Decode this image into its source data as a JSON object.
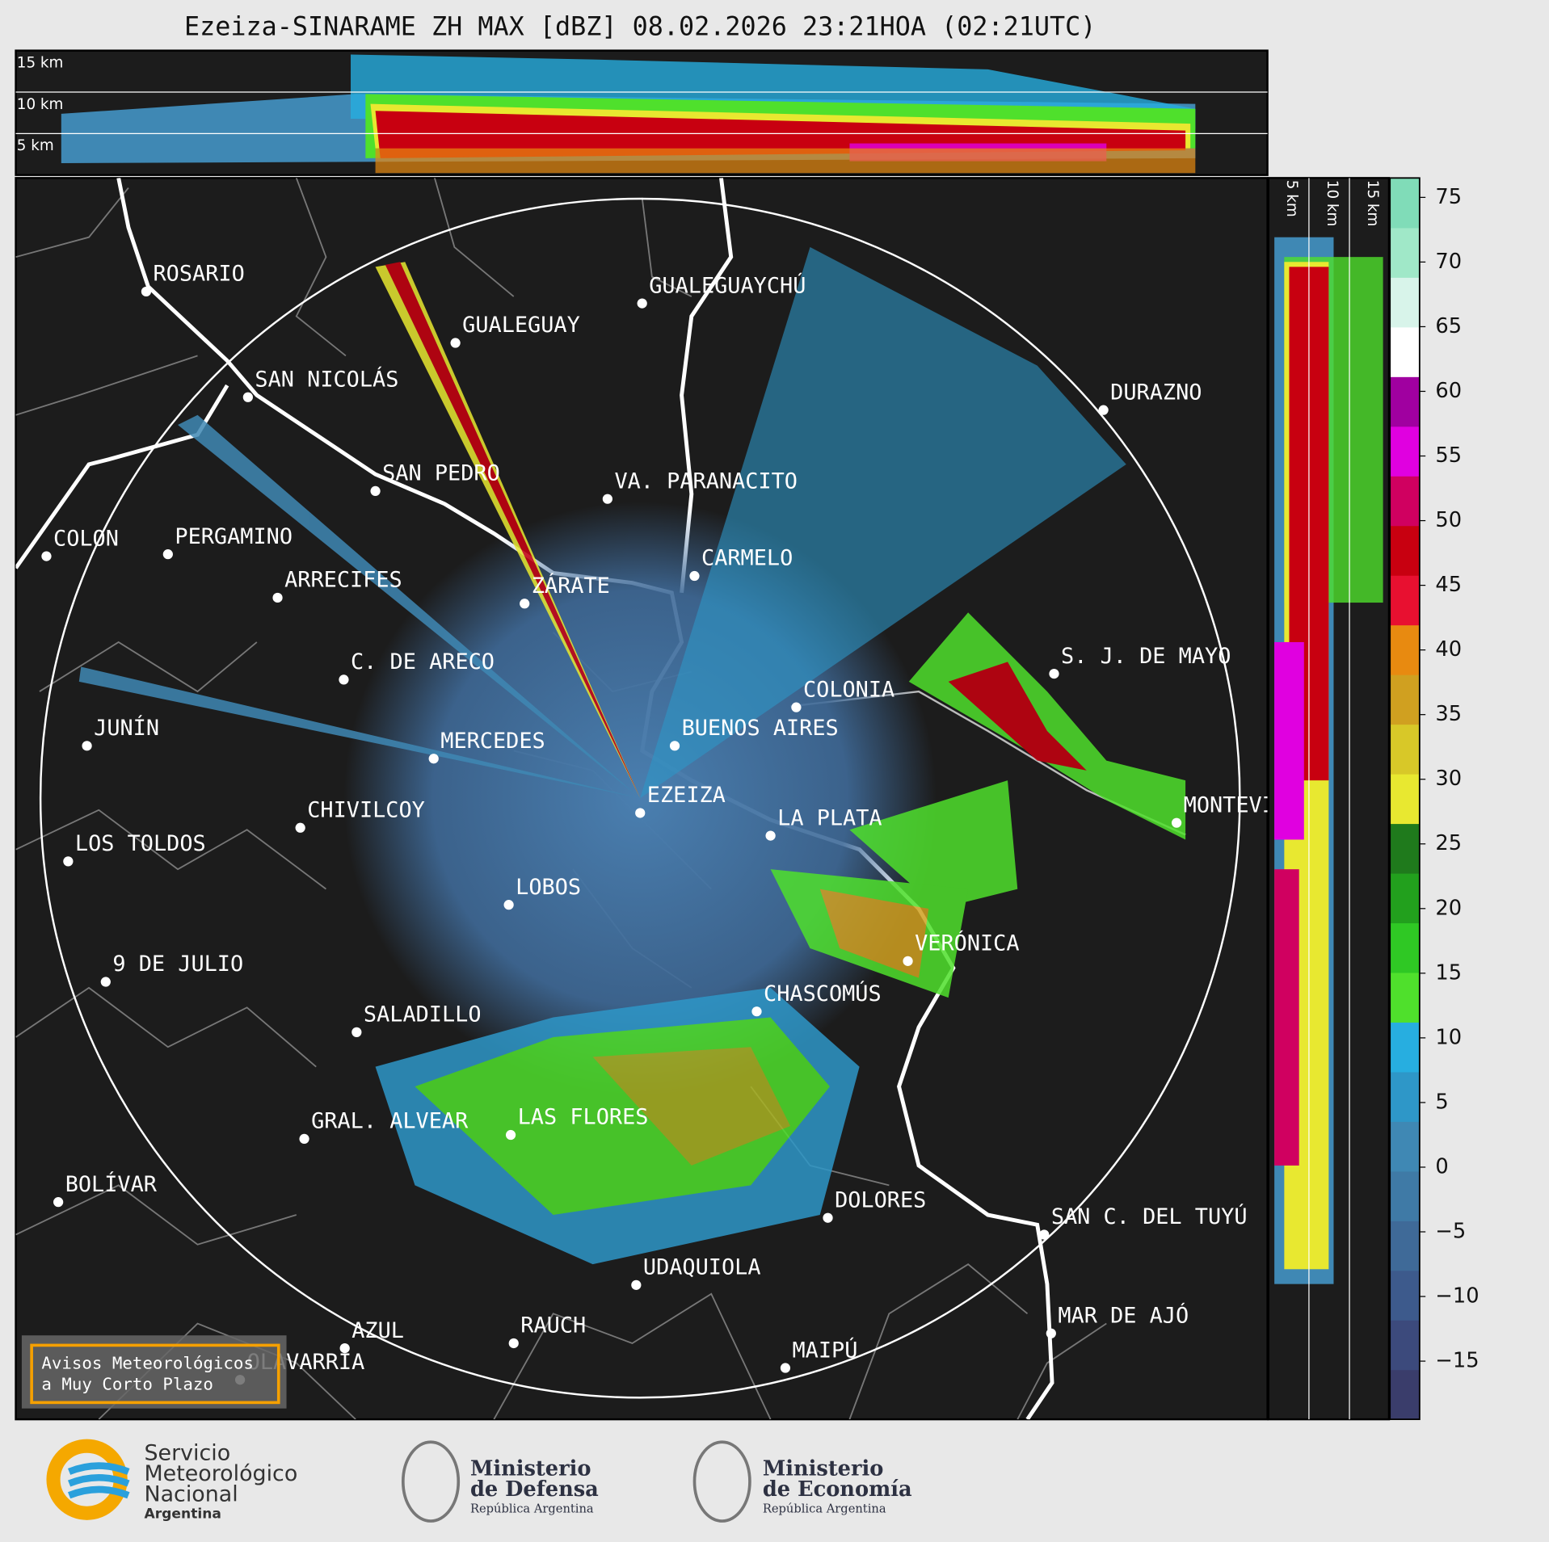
{
  "header": {
    "title": "Ezeiza-SINARAME ZH MAX [dBZ] 08.02.2026 23:21HOA (02:21UTC)"
  },
  "height_labels": [
    "15 km",
    "10 km",
    "5 km"
  ],
  "cities": [
    "ROSARIO",
    "GUALEGUAYCHÚ",
    "GUALEGUAY",
    "SAN NICOLÁS",
    "DURAZNO",
    "SAN PEDRO",
    "VA. PARANACITO",
    "COLON",
    "PERGAMINO",
    "CARMELO",
    "ARRECIFES",
    "ZÁRATE",
    "S. J. DE MAYO",
    "C. DE ARECO",
    "COLONIA",
    "JUNÍN",
    "BUENOS AIRES",
    "MERCEDES",
    "EZEIZA",
    "MONTEVIDEO",
    "CHIVILCOY",
    "LA PLATA",
    "LOS TOLDOS",
    "LOBOS",
    "VERÓNICA",
    "9 DE JULIO",
    "CHASCOMÚS",
    "SALADILLO",
    "GRAL. ALVEAR",
    "LAS FLORES",
    "BOLÍVAR",
    "DOLORES",
    "SAN C. DEL TUYÚ",
    "UDAQUIOLA",
    "MAR DE AJÓ",
    "RAUCH",
    "AZUL",
    "OLAVARRÍA",
    "MAIPÚ"
  ],
  "colorbar": {
    "lim": [
      -19.5,
      76.5
    ],
    "ticks": [
      75,
      70,
      65,
      60,
      55,
      50,
      45,
      40,
      35,
      30,
      25,
      20,
      15,
      10,
      5,
      0,
      {
        "value": -5,
        "label": "−5"
      },
      {
        "value": -10,
        "label": "−10"
      },
      {
        "value": -15,
        "label": "−15"
      }
    ],
    "colors": [
      "#3a3d6b",
      "#3c4a7c",
      "#3d5a8c",
      "#3f6a98",
      "#3f7aa6",
      "#3f88b4",
      "#2e97c8",
      "#27aee0",
      "#4fe02c",
      "#2fc824",
      "#22a01d",
      "#1f7a1c",
      "#e8e830",
      "#d8c828",
      "#d0a020",
      "#e88a10",
      "#e81030",
      "#c80010",
      "#d00060",
      "#e000e0",
      "#a000a0",
      "#ffffff",
      "#d8f4ea",
      "#a0e8c8",
      "#80dcb8"
    ]
  },
  "warning": {
    "line1": "Avisos Meteorológicos",
    "line2": "a Muy Corto Plazo"
  },
  "logos": {
    "smn": [
      "Servicio",
      "Meteorológico",
      "Nacional",
      "Argentina"
    ],
    "defensa": [
      "Ministerio",
      "de Defensa",
      "República Argentina"
    ],
    "economia": [
      "Ministerio",
      "de Economía",
      "República Argentina"
    ]
  }
}
